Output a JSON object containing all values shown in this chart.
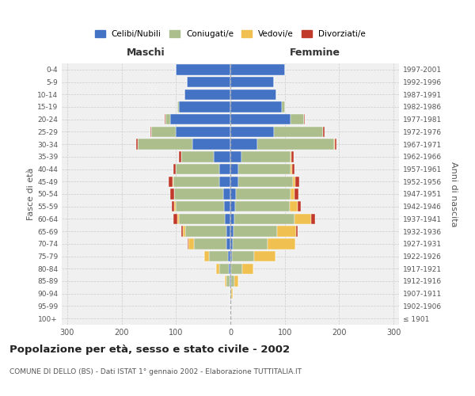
{
  "age_groups": [
    "100+",
    "95-99",
    "90-94",
    "85-89",
    "80-84",
    "75-79",
    "70-74",
    "65-69",
    "60-64",
    "55-59",
    "50-54",
    "45-49",
    "40-44",
    "35-39",
    "30-34",
    "25-29",
    "20-24",
    "15-19",
    "10-14",
    "5-9",
    "0-4"
  ],
  "birth_years": [
    "≤ 1901",
    "1902-1906",
    "1907-1911",
    "1912-1916",
    "1917-1921",
    "1922-1926",
    "1927-1931",
    "1932-1936",
    "1937-1941",
    "1942-1946",
    "1947-1951",
    "1952-1956",
    "1957-1961",
    "1962-1966",
    "1967-1971",
    "1972-1976",
    "1977-1981",
    "1982-1986",
    "1987-1991",
    "1992-1996",
    "1997-2001"
  ],
  "maschi_celibe": [
    0,
    0,
    0,
    2,
    3,
    5,
    7,
    8,
    10,
    11,
    13,
    20,
    20,
    30,
    70,
    100,
    110,
    95,
    85,
    80,
    100
  ],
  "maschi_coniugato": [
    0,
    0,
    1,
    5,
    18,
    35,
    60,
    75,
    85,
    90,
    90,
    85,
    80,
    60,
    100,
    45,
    10,
    2,
    0,
    0,
    0
  ],
  "maschi_vedovo": [
    0,
    0,
    1,
    3,
    5,
    8,
    10,
    5,
    3,
    2,
    1,
    1,
    0,
    0,
    0,
    0,
    0,
    0,
    0,
    0,
    0
  ],
  "maschi_divorziato": [
    0,
    0,
    0,
    0,
    0,
    0,
    2,
    2,
    7,
    5,
    7,
    7,
    5,
    5,
    3,
    2,
    1,
    0,
    0,
    0,
    0
  ],
  "femmine_celibe": [
    0,
    0,
    0,
    2,
    2,
    3,
    4,
    6,
    8,
    9,
    10,
    15,
    15,
    20,
    50,
    80,
    110,
    95,
    85,
    80,
    100
  ],
  "femmine_coniugato": [
    0,
    0,
    2,
    5,
    20,
    40,
    65,
    80,
    110,
    100,
    100,
    100,
    95,
    90,
    140,
    90,
    25,
    5,
    0,
    0,
    0
  ],
  "femmine_vedovo": [
    0,
    0,
    2,
    8,
    20,
    40,
    50,
    35,
    30,
    15,
    8,
    5,
    3,
    2,
    2,
    1,
    1,
    0,
    0,
    0,
    0
  ],
  "femmine_divorziato": [
    0,
    0,
    0,
    0,
    0,
    0,
    0,
    2,
    7,
    5,
    7,
    7,
    5,
    5,
    3,
    2,
    1,
    0,
    0,
    0,
    0
  ],
  "colors": {
    "celibe": "#4472C4",
    "coniugato": "#ABBE8C",
    "vedovo": "#F0C050",
    "divorziato": "#C0392B"
  },
  "xlim": 310,
  "title_main": "Popolazione per età, sesso e stato civile - 2002",
  "title_sub": "COMUNE DI DELLO (BS) - Dati ISTAT 1° gennaio 2002 - Elaborazione TUTTITALIA.IT",
  "ylabel_left": "Fasce di età",
  "ylabel_right": "Anni di nascita",
  "xlabel_left": "Maschi",
  "xlabel_right": "Femmine",
  "bg_color": "#FFFFFF",
  "plot_bg_color": "#F0F0F0"
}
